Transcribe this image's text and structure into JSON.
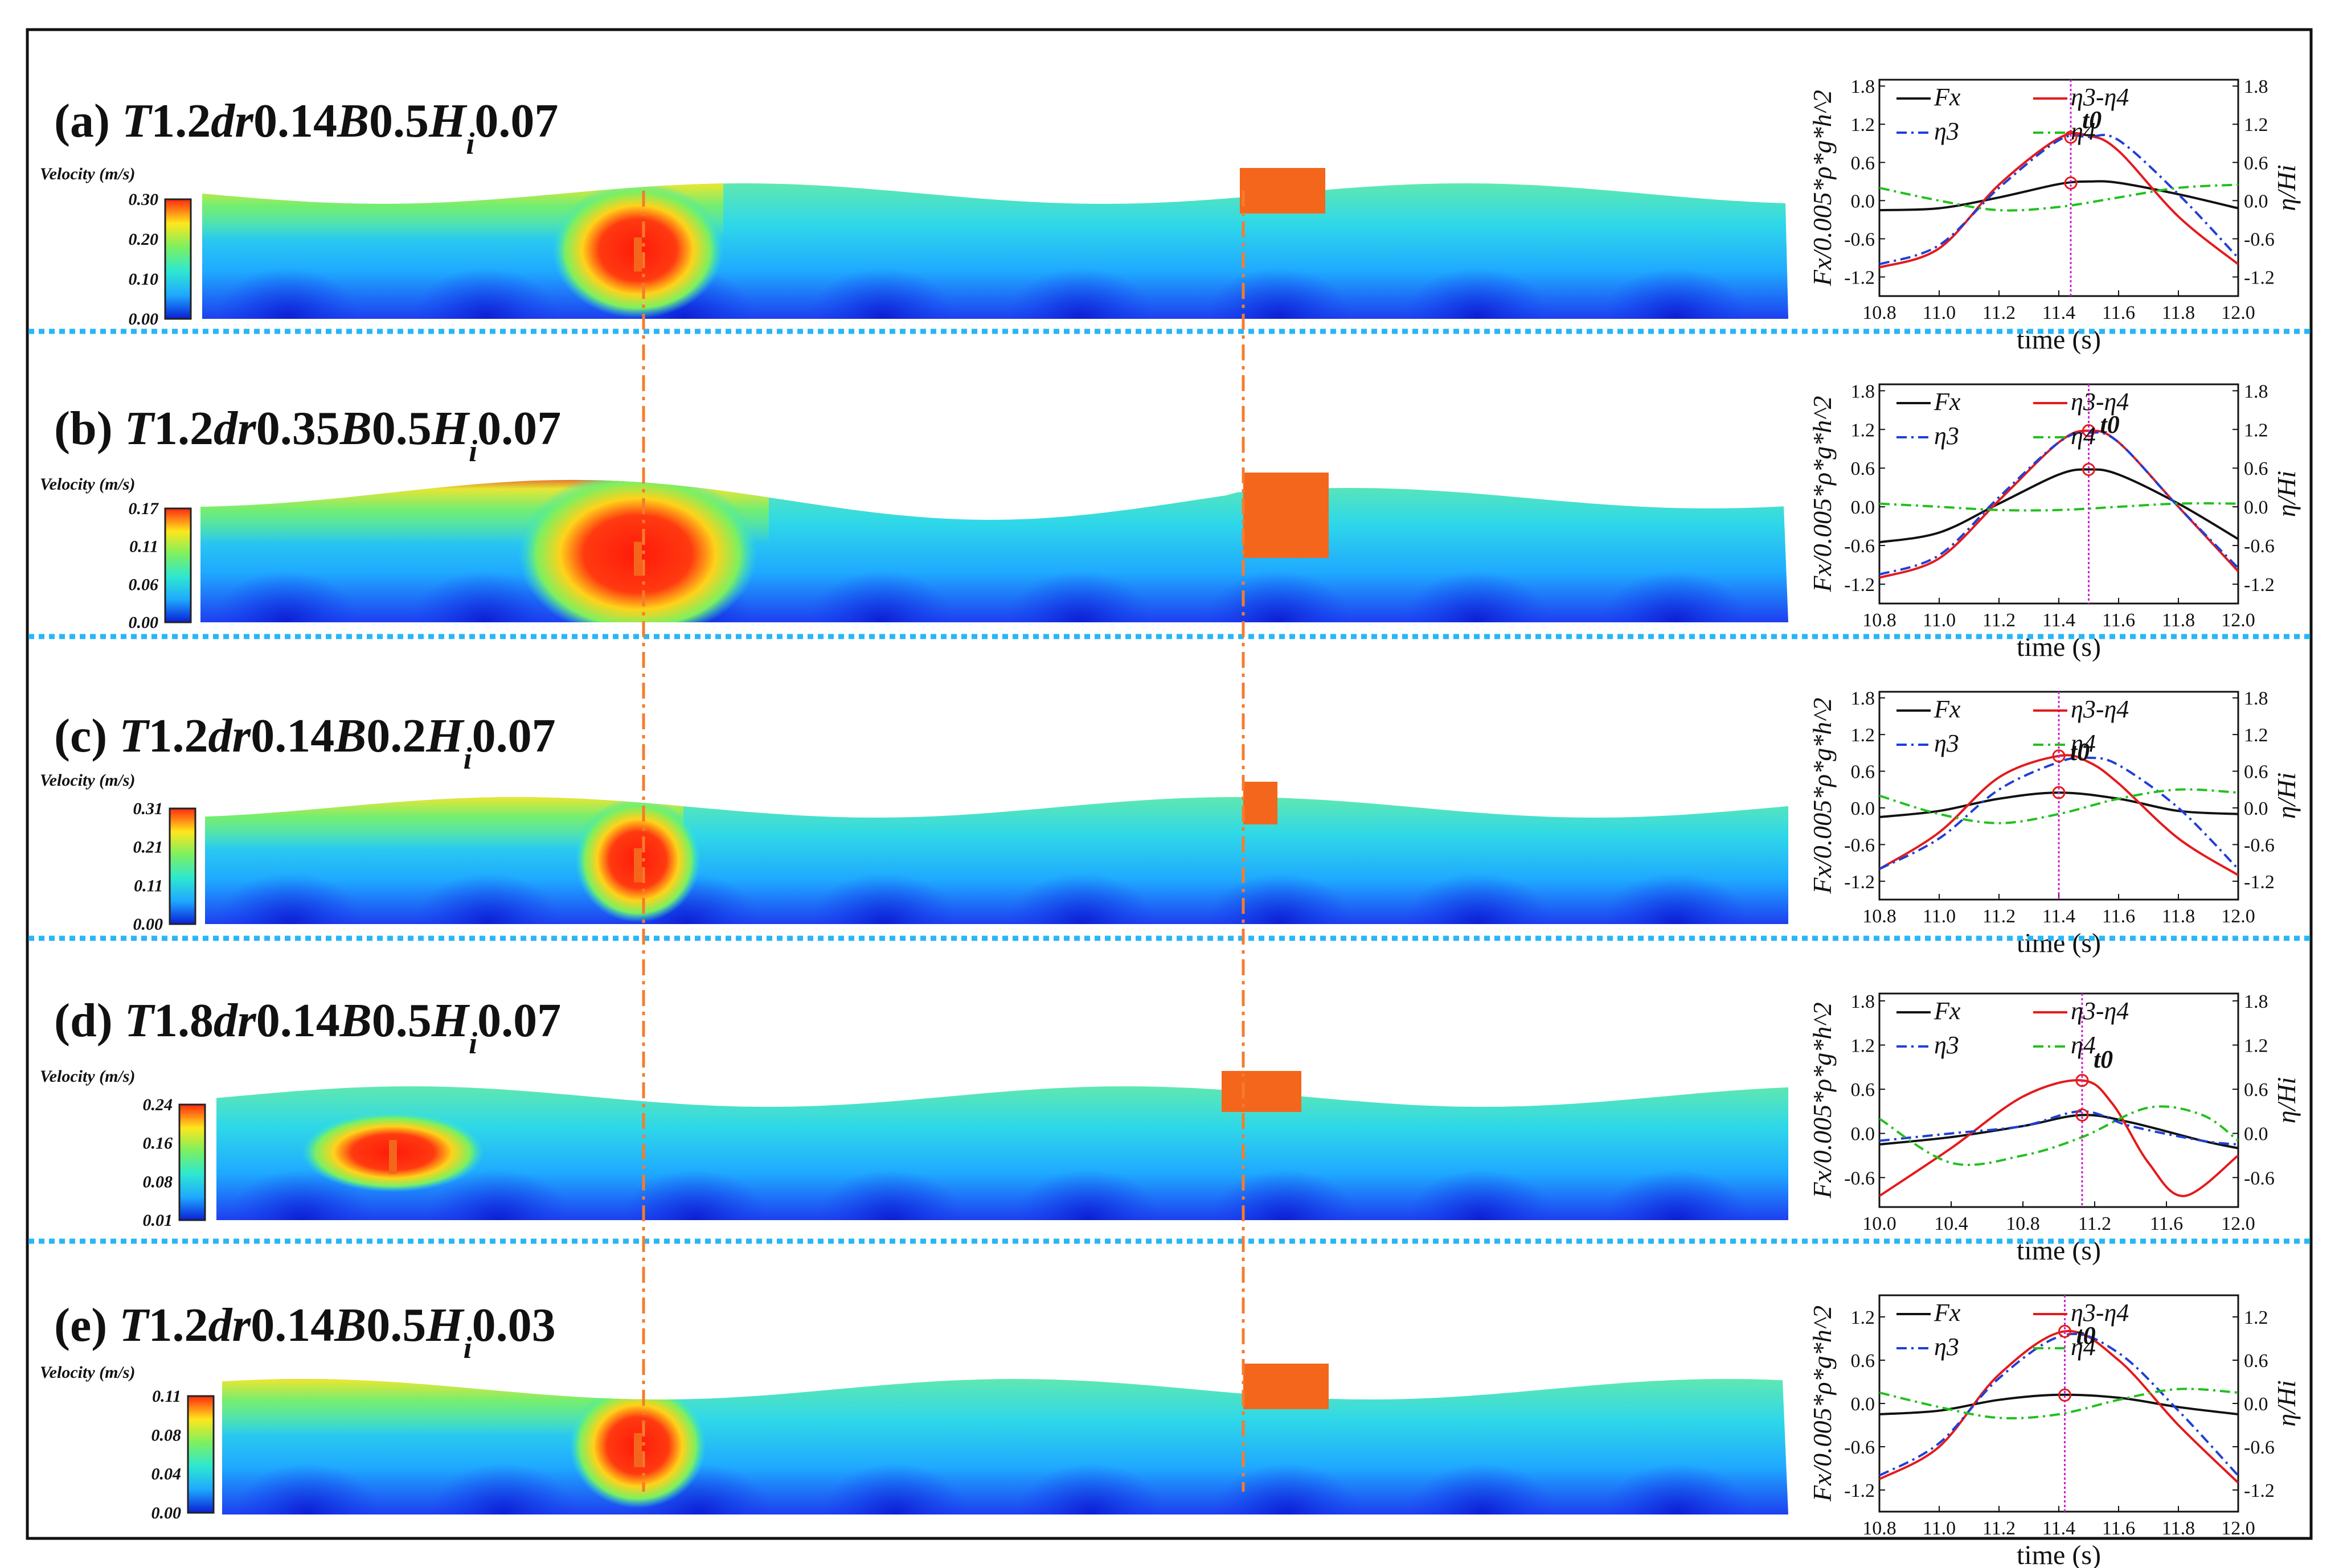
{
  "figure": {
    "separator_color": "#29b6f6",
    "guide_color": "#f57c2c",
    "block_color": "#f4661b",
    "colormap": [
      "#0a1fd6",
      "#1fa9ff",
      "#2ee8d0",
      "#7cf060",
      "#ffe61c",
      "#ff2a10"
    ]
  },
  "panels": [
    {
      "label": "(a)",
      "title_parts": [
        [
          "i",
          "T"
        ],
        [
          "n",
          "1.2"
        ],
        [
          "i",
          "dr"
        ],
        [
          "n",
          "0.14"
        ],
        [
          "i",
          "B"
        ],
        [
          "n",
          "0.5"
        ],
        [
          "i",
          "H"
        ],
        [
          "s",
          "i"
        ],
        [
          "n",
          "0.07"
        ]
      ],
      "velocity_label": "Velocity (m/s)",
      "colorbar_ticks": [
        "0.30",
        "0.20",
        "0.10",
        "0.00"
      ],
      "chart_data": {
        "type": "line",
        "xlabel": "time (s)",
        "ylabel_left": "Fx/0.005*ρ*g*h^2",
        "ylabel_right": "η/Hi",
        "xlim": [
          10.8,
          12.0
        ],
        "xticks": [
          "10.8",
          "11.0",
          "11.2",
          "11.4",
          "11.6",
          "11.8",
          "12.0"
        ],
        "ylim": [
          -1.5,
          1.9
        ],
        "yticks_left": [
          "1.8",
          "1.2",
          "0.6",
          "0.0",
          "-0.6",
          "-1.2"
        ],
        "yticks_right": [
          "1.8",
          "1.2",
          "0.6",
          "0.0",
          "-0.6",
          "-1.2"
        ],
        "t0": 11.44,
        "t0_label": "t0",
        "series": [
          {
            "name": "Fx",
            "x": [
              10.8,
              11.0,
              11.2,
              11.4,
              11.5,
              11.6,
              11.8,
              12.0
            ],
            "y": [
              -0.15,
              -0.12,
              0.05,
              0.26,
              0.3,
              0.28,
              0.1,
              -0.12
            ]
          },
          {
            "name": "η3-η4",
            "x": [
              10.8,
              11.0,
              11.2,
              11.4,
              11.5,
              11.6,
              11.8,
              12.0
            ],
            "y": [
              -1.05,
              -0.75,
              0.25,
              0.98,
              1.02,
              0.78,
              -0.25,
              -1.0
            ]
          },
          {
            "name": "η3",
            "x": [
              10.8,
              11.0,
              11.2,
              11.4,
              11.5,
              11.6,
              11.8,
              12.0
            ],
            "y": [
              -1.0,
              -0.7,
              0.2,
              0.95,
              1.0,
              0.95,
              0.1,
              -0.9
            ]
          },
          {
            "name": "η4",
            "x": [
              10.8,
              11.0,
              11.2,
              11.4,
              11.6,
              11.8,
              12.0
            ],
            "y": [
              0.2,
              0.0,
              -0.15,
              -0.1,
              0.05,
              0.2,
              0.25
            ]
          }
        ]
      }
    },
    {
      "label": "(b)",
      "title_parts": [
        [
          "i",
          "T"
        ],
        [
          "n",
          "1.2"
        ],
        [
          "i",
          "dr"
        ],
        [
          "n",
          "0.35"
        ],
        [
          "i",
          "B"
        ],
        [
          "n",
          "0.5"
        ],
        [
          "i",
          "H"
        ],
        [
          "s",
          "i"
        ],
        [
          "n",
          "0.07"
        ]
      ],
      "velocity_label": "Velocity (m/s)",
      "colorbar_ticks": [
        "0.17",
        "0.11",
        "0.06",
        "0.00"
      ],
      "chart_data": {
        "type": "line",
        "xlabel": "time (s)",
        "ylabel_left": "Fx/0.005*ρ*g*h^2",
        "ylabel_right": "η/Hi",
        "xlim": [
          10.8,
          12.0
        ],
        "xticks": [
          "10.8",
          "11.0",
          "11.2",
          "11.4",
          "11.6",
          "11.8",
          "12.0"
        ],
        "ylim": [
          -1.5,
          1.9
        ],
        "yticks_left": [
          "1.8",
          "1.2",
          "0.6",
          "0.0",
          "-0.6",
          "-1.2"
        ],
        "yticks_right": [
          "1.8",
          "1.2",
          "0.6",
          "0.0",
          "-0.6",
          "-1.2"
        ],
        "t0": 11.5,
        "t0_label": "t0",
        "series": [
          {
            "name": "Fx",
            "x": [
              10.8,
              11.0,
              11.2,
              11.4,
              11.5,
              11.6,
              11.8,
              12.0
            ],
            "y": [
              -0.55,
              -0.4,
              0.05,
              0.5,
              0.58,
              0.5,
              0.05,
              -0.5
            ]
          },
          {
            "name": "η3-η4",
            "x": [
              10.8,
              11.0,
              11.2,
              11.4,
              11.5,
              11.6,
              11.8,
              12.0
            ],
            "y": [
              -1.1,
              -0.8,
              0.1,
              1.0,
              1.18,
              1.0,
              0.0,
              -1.0
            ]
          },
          {
            "name": "η3",
            "x": [
              10.8,
              11.0,
              11.2,
              11.4,
              11.5,
              11.6,
              11.8,
              12.0
            ],
            "y": [
              -1.05,
              -0.75,
              0.15,
              1.0,
              1.15,
              1.0,
              0.0,
              -0.95
            ]
          },
          {
            "name": "η4",
            "x": [
              10.8,
              11.0,
              11.2,
              11.4,
              11.6,
              11.8,
              12.0
            ],
            "y": [
              0.05,
              0.0,
              -0.05,
              -0.05,
              0.0,
              0.05,
              0.05
            ]
          }
        ]
      }
    },
    {
      "label": "(c)",
      "title_parts": [
        [
          "i",
          "T"
        ],
        [
          "n",
          "1.2"
        ],
        [
          "i",
          "dr"
        ],
        [
          "n",
          "0.14"
        ],
        [
          "i",
          "B"
        ],
        [
          "n",
          "0.2"
        ],
        [
          "i",
          "H"
        ],
        [
          "s",
          "i"
        ],
        [
          "n",
          "0.07"
        ]
      ],
      "velocity_label": "Velocity (m/s)",
      "colorbar_ticks": [
        "0.31",
        "0.21",
        "0.11",
        "0.00"
      ],
      "chart_data": {
        "type": "line",
        "xlabel": "time (s)",
        "ylabel_left": "Fx/0.005*ρ*g*h^2",
        "ylabel_right": "η/Hi",
        "xlim": [
          10.8,
          12.0
        ],
        "xticks": [
          "10.8",
          "11.0",
          "11.2",
          "11.4",
          "11.6",
          "11.8",
          "12.0"
        ],
        "ylim": [
          -1.5,
          1.9
        ],
        "yticks_left": [
          "1.8",
          "1.2",
          "0.6",
          "0.0",
          "-0.6",
          "-1.2"
        ],
        "yticks_right": [
          "1.8",
          "1.2",
          "0.6",
          "0.0",
          "-0.6",
          "-1.2"
        ],
        "t0": 11.4,
        "t0_label": "t0",
        "series": [
          {
            "name": "Fx",
            "x": [
              10.8,
              11.0,
              11.2,
              11.4,
              11.6,
              11.8,
              12.0
            ],
            "y": [
              -0.15,
              -0.05,
              0.15,
              0.25,
              0.15,
              -0.05,
              -0.1
            ]
          },
          {
            "name": "η3-η4",
            "x": [
              10.8,
              11.0,
              11.2,
              11.4,
              11.5,
              11.6,
              11.8,
              12.0
            ],
            "y": [
              -1.0,
              -0.4,
              0.5,
              0.85,
              0.75,
              0.4,
              -0.5,
              -1.1
            ]
          },
          {
            "name": "η3",
            "x": [
              10.8,
              11.0,
              11.2,
              11.4,
              11.5,
              11.6,
              11.8,
              12.0
            ],
            "y": [
              -1.0,
              -0.5,
              0.3,
              0.75,
              0.82,
              0.7,
              0.0,
              -1.0
            ]
          },
          {
            "name": "η4",
            "x": [
              10.8,
              11.0,
              11.2,
              11.4,
              11.6,
              11.8,
              12.0
            ],
            "y": [
              0.2,
              -0.1,
              -0.25,
              -0.1,
              0.15,
              0.3,
              0.25
            ]
          }
        ]
      }
    },
    {
      "label": "(d)",
      "title_parts": [
        [
          "i",
          "T"
        ],
        [
          "n",
          "1.8"
        ],
        [
          "i",
          "dr"
        ],
        [
          "n",
          "0.14"
        ],
        [
          "i",
          "B"
        ],
        [
          "n",
          "0.5"
        ],
        [
          "i",
          "H"
        ],
        [
          "s",
          "i"
        ],
        [
          "n",
          "0.07"
        ]
      ],
      "velocity_label": "Velocity (m/s)",
      "colorbar_ticks": [
        "0.24",
        "0.16",
        "0.08",
        "0.01"
      ],
      "chart_data": {
        "type": "line",
        "xlabel": "time (s)",
        "ylabel_left": "Fx/0.005*ρ*g*h^2",
        "ylabel_right": "η/Hi",
        "xlim": [
          10.0,
          12.0
        ],
        "xticks": [
          "10.0",
          "10.4",
          "10.8",
          "11.2",
          "11.6",
          "12.0"
        ],
        "ylim": [
          -1.0,
          1.9
        ],
        "yticks_left": [
          "1.8",
          "1.2",
          "0.6",
          "0.0",
          "-0.6"
        ],
        "yticks_right": [
          "1.8",
          "1.2",
          "0.6",
          "0.0",
          "-0.6"
        ],
        "t0": 11.13,
        "t0_label": "t0",
        "series": [
          {
            "name": "Fx",
            "x": [
              10.0,
              10.4,
              10.8,
              11.13,
              11.4,
              11.8,
              12.0
            ],
            "y": [
              -0.15,
              -0.05,
              0.1,
              0.25,
              0.15,
              -0.1,
              -0.2
            ]
          },
          {
            "name": "η3-η4",
            "x": [
              10.0,
              10.4,
              10.8,
              11.13,
              11.3,
              11.5,
              11.7,
              12.0
            ],
            "y": [
              -0.85,
              -0.2,
              0.5,
              0.72,
              0.4,
              -0.4,
              -0.85,
              -0.3
            ]
          },
          {
            "name": "η3",
            "x": [
              10.0,
              10.4,
              10.8,
              11.13,
              11.4,
              11.8,
              12.0
            ],
            "y": [
              -0.1,
              0.0,
              0.1,
              0.3,
              0.1,
              -0.1,
              -0.15
            ]
          },
          {
            "name": "η4",
            "x": [
              10.0,
              10.4,
              10.8,
              11.13,
              11.5,
              11.8,
              12.0
            ],
            "y": [
              0.2,
              -0.4,
              -0.3,
              -0.05,
              0.35,
              0.25,
              -0.1
            ]
          }
        ]
      }
    },
    {
      "label": "(e)",
      "title_parts": [
        [
          "i",
          "T"
        ],
        [
          "n",
          "1.2"
        ],
        [
          "i",
          "dr"
        ],
        [
          "n",
          "0.14"
        ],
        [
          "i",
          "B"
        ],
        [
          "n",
          "0.5"
        ],
        [
          "i",
          "H"
        ],
        [
          "s",
          "i"
        ],
        [
          "n",
          "0.03"
        ]
      ],
      "velocity_label": "Velocity (m/s)",
      "colorbar_ticks": [
        "0.11",
        "0.08",
        "0.04",
        "0.00"
      ],
      "chart_data": {
        "type": "line",
        "xlabel": "time (s)",
        "ylabel_left": "Fx/0.005*ρ*g*h^2",
        "ylabel_right": "η/Hi",
        "xlim": [
          10.8,
          12.0
        ],
        "xticks": [
          "10.8",
          "11.0",
          "11.2",
          "11.4",
          "11.6",
          "11.8",
          "12.0"
        ],
        "ylim": [
          -1.5,
          1.5
        ],
        "yticks_left": [
          "1.2",
          "0.6",
          "0.0",
          "-0.6",
          "-1.2"
        ],
        "yticks_right": [
          "1.2",
          "0.6",
          "0.0",
          "-0.6",
          "-1.2"
        ],
        "t0": 11.42,
        "t0_label": "t0",
        "series": [
          {
            "name": "Fx",
            "x": [
              10.8,
              11.0,
              11.2,
              11.4,
              11.6,
              11.8,
              12.0
            ],
            "y": [
              -0.15,
              -0.1,
              0.05,
              0.12,
              0.08,
              -0.05,
              -0.15
            ]
          },
          {
            "name": "η3-η4",
            "x": [
              10.8,
              11.0,
              11.2,
              11.42,
              11.6,
              11.8,
              12.0
            ],
            "y": [
              -1.05,
              -0.6,
              0.4,
              1.0,
              0.6,
              -0.3,
              -1.1
            ]
          },
          {
            "name": "η3",
            "x": [
              10.8,
              11.0,
              11.2,
              11.42,
              11.6,
              11.8,
              12.0
            ],
            "y": [
              -1.0,
              -0.55,
              0.35,
              0.95,
              0.7,
              -0.1,
              -1.0
            ]
          },
          {
            "name": "η4",
            "x": [
              10.8,
              11.0,
              11.2,
              11.4,
              11.6,
              11.8,
              12.0
            ],
            "y": [
              0.15,
              -0.05,
              -0.2,
              -0.15,
              0.05,
              0.2,
              0.15
            ]
          }
        ]
      }
    }
  ]
}
